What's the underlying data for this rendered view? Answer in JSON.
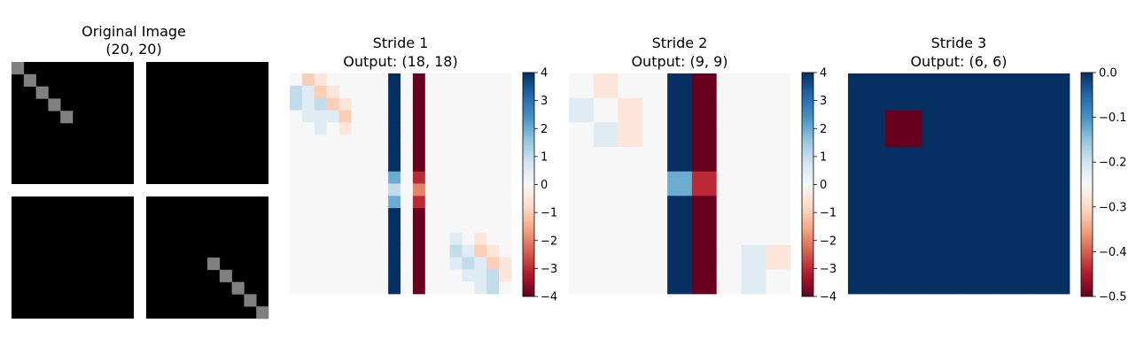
{
  "panels": [
    {
      "title_line1": "Original Image",
      "title_line2": "(20, 20)"
    },
    {
      "title_line1": "Stride 1",
      "title_line2": "Output: (18, 18)"
    },
    {
      "title_line1": "Stride 2",
      "title_line2": "Output: (9, 9)"
    },
    {
      "title_line1": "Stride 3",
      "title_line2": "Output: (6, 6)"
    }
  ],
  "chart_data": [
    {
      "type": "heatmap",
      "title": "Original Image\n(20, 20)",
      "colormap": "gray",
      "note": "image 20x20, 4 quadrants of 10x10 each; gray cells value 0.5 on black (0)",
      "rows": 20,
      "cols": 20,
      "nonzero_cells": [
        [
          0,
          0,
          0.5
        ],
        [
          1,
          1,
          0.5
        ],
        [
          2,
          2,
          0.5
        ],
        [
          3,
          3,
          0.5
        ],
        [
          4,
          4,
          0.5
        ],
        [
          15,
          15,
          0.5
        ],
        [
          16,
          16,
          0.5
        ],
        [
          17,
          17,
          0.5
        ],
        [
          18,
          18,
          0.5
        ],
        [
          19,
          19,
          0.5
        ]
      ],
      "axes_visible": false
    },
    {
      "type": "heatmap",
      "title": "Stride 1\nOutput: (18, 18)",
      "colormap": "RdBu",
      "vmin": -4,
      "vmax": 4,
      "colorbar_ticks": [
        4,
        3,
        2,
        1,
        0,
        -1,
        -2,
        -3,
        -4
      ],
      "rows": 18,
      "cols": 18,
      "column_values": [
        {
          "col": 8,
          "rows_0_7": 4,
          "row_8": 2,
          "row_9": 1,
          "row_10": 2,
          "rows_11_17": 4
        },
        {
          "col": 10,
          "rows_0_7": -4,
          "row_8": -3,
          "row_9": -2,
          "row_10": -3,
          "rows_11_17": -4
        }
      ],
      "nonzero_cells": [
        [
          0,
          1,
          -1
        ],
        [
          0,
          2,
          -0.5
        ],
        [
          1,
          0,
          1
        ],
        [
          1,
          1,
          0.5
        ],
        [
          1,
          2,
          -1
        ],
        [
          1,
          3,
          -0.5
        ],
        [
          2,
          0,
          1
        ],
        [
          2,
          1,
          0.5
        ],
        [
          2,
          2,
          1
        ],
        [
          2,
          3,
          -1
        ],
        [
          2,
          4,
          -0.5
        ],
        [
          3,
          1,
          0.5
        ],
        [
          3,
          2,
          0.5
        ],
        [
          3,
          3,
          0.5
        ],
        [
          3,
          4,
          -1
        ],
        [
          4,
          2,
          0.5
        ],
        [
          4,
          4,
          -0.5
        ],
        [
          13,
          13,
          0.5
        ],
        [
          13,
          15,
          -0.5
        ],
        [
          14,
          13,
          1
        ],
        [
          14,
          14,
          0.5
        ],
        [
          14,
          15,
          -1
        ],
        [
          14,
          16,
          -0.5
        ],
        [
          15,
          13,
          0.5
        ],
        [
          15,
          14,
          1
        ],
        [
          15,
          15,
          0.5
        ],
        [
          15,
          16,
          -1
        ],
        [
          15,
          17,
          -0.5
        ],
        [
          16,
          14,
          0.5
        ],
        [
          16,
          15,
          0.5
        ],
        [
          16,
          16,
          1
        ],
        [
          16,
          17,
          -0.5
        ],
        [
          17,
          15,
          0.5
        ],
        [
          17,
          16,
          1
        ]
      ],
      "axes_visible": false
    },
    {
      "type": "heatmap",
      "title": "Stride 2\nOutput: (9, 9)",
      "colormap": "RdBu",
      "vmin": -4,
      "vmax": 4,
      "colorbar_ticks": [
        4,
        3,
        2,
        1,
        0,
        -1,
        -2,
        -3,
        -4
      ],
      "rows": 9,
      "cols": 9,
      "column_values": [
        {
          "col": 4,
          "rows_0_3": 4,
          "row_4": 2,
          "rows_5_8": 4
        },
        {
          "col": 5,
          "rows_0_3": -4,
          "row_4": -3,
          "rows_5_8": -4
        }
      ],
      "nonzero_cells": [
        [
          0,
          1,
          -0.5
        ],
        [
          1,
          0,
          0.5
        ],
        [
          1,
          2,
          -0.5
        ],
        [
          2,
          1,
          0.5
        ],
        [
          2,
          2,
          -0.5
        ],
        [
          7,
          7,
          0.5
        ],
        [
          7,
          8,
          -0.5
        ],
        [
          8,
          7,
          0.5
        ]
      ],
      "axes_visible": false
    },
    {
      "type": "heatmap",
      "title": "Stride 3\nOutput: (6, 6)",
      "colormap": "RdBu",
      "vmin": -0.5,
      "vmax": 0.0,
      "colorbar_ticks": [
        "0.0",
        "−0.1",
        "−0.2",
        "−0.3",
        "−0.4",
        "−0.5"
      ],
      "rows": 6,
      "cols": 6,
      "default_value": 0,
      "nonzero_cells": [
        [
          1,
          1,
          -0.5
        ]
      ],
      "axes_visible": false
    }
  ]
}
